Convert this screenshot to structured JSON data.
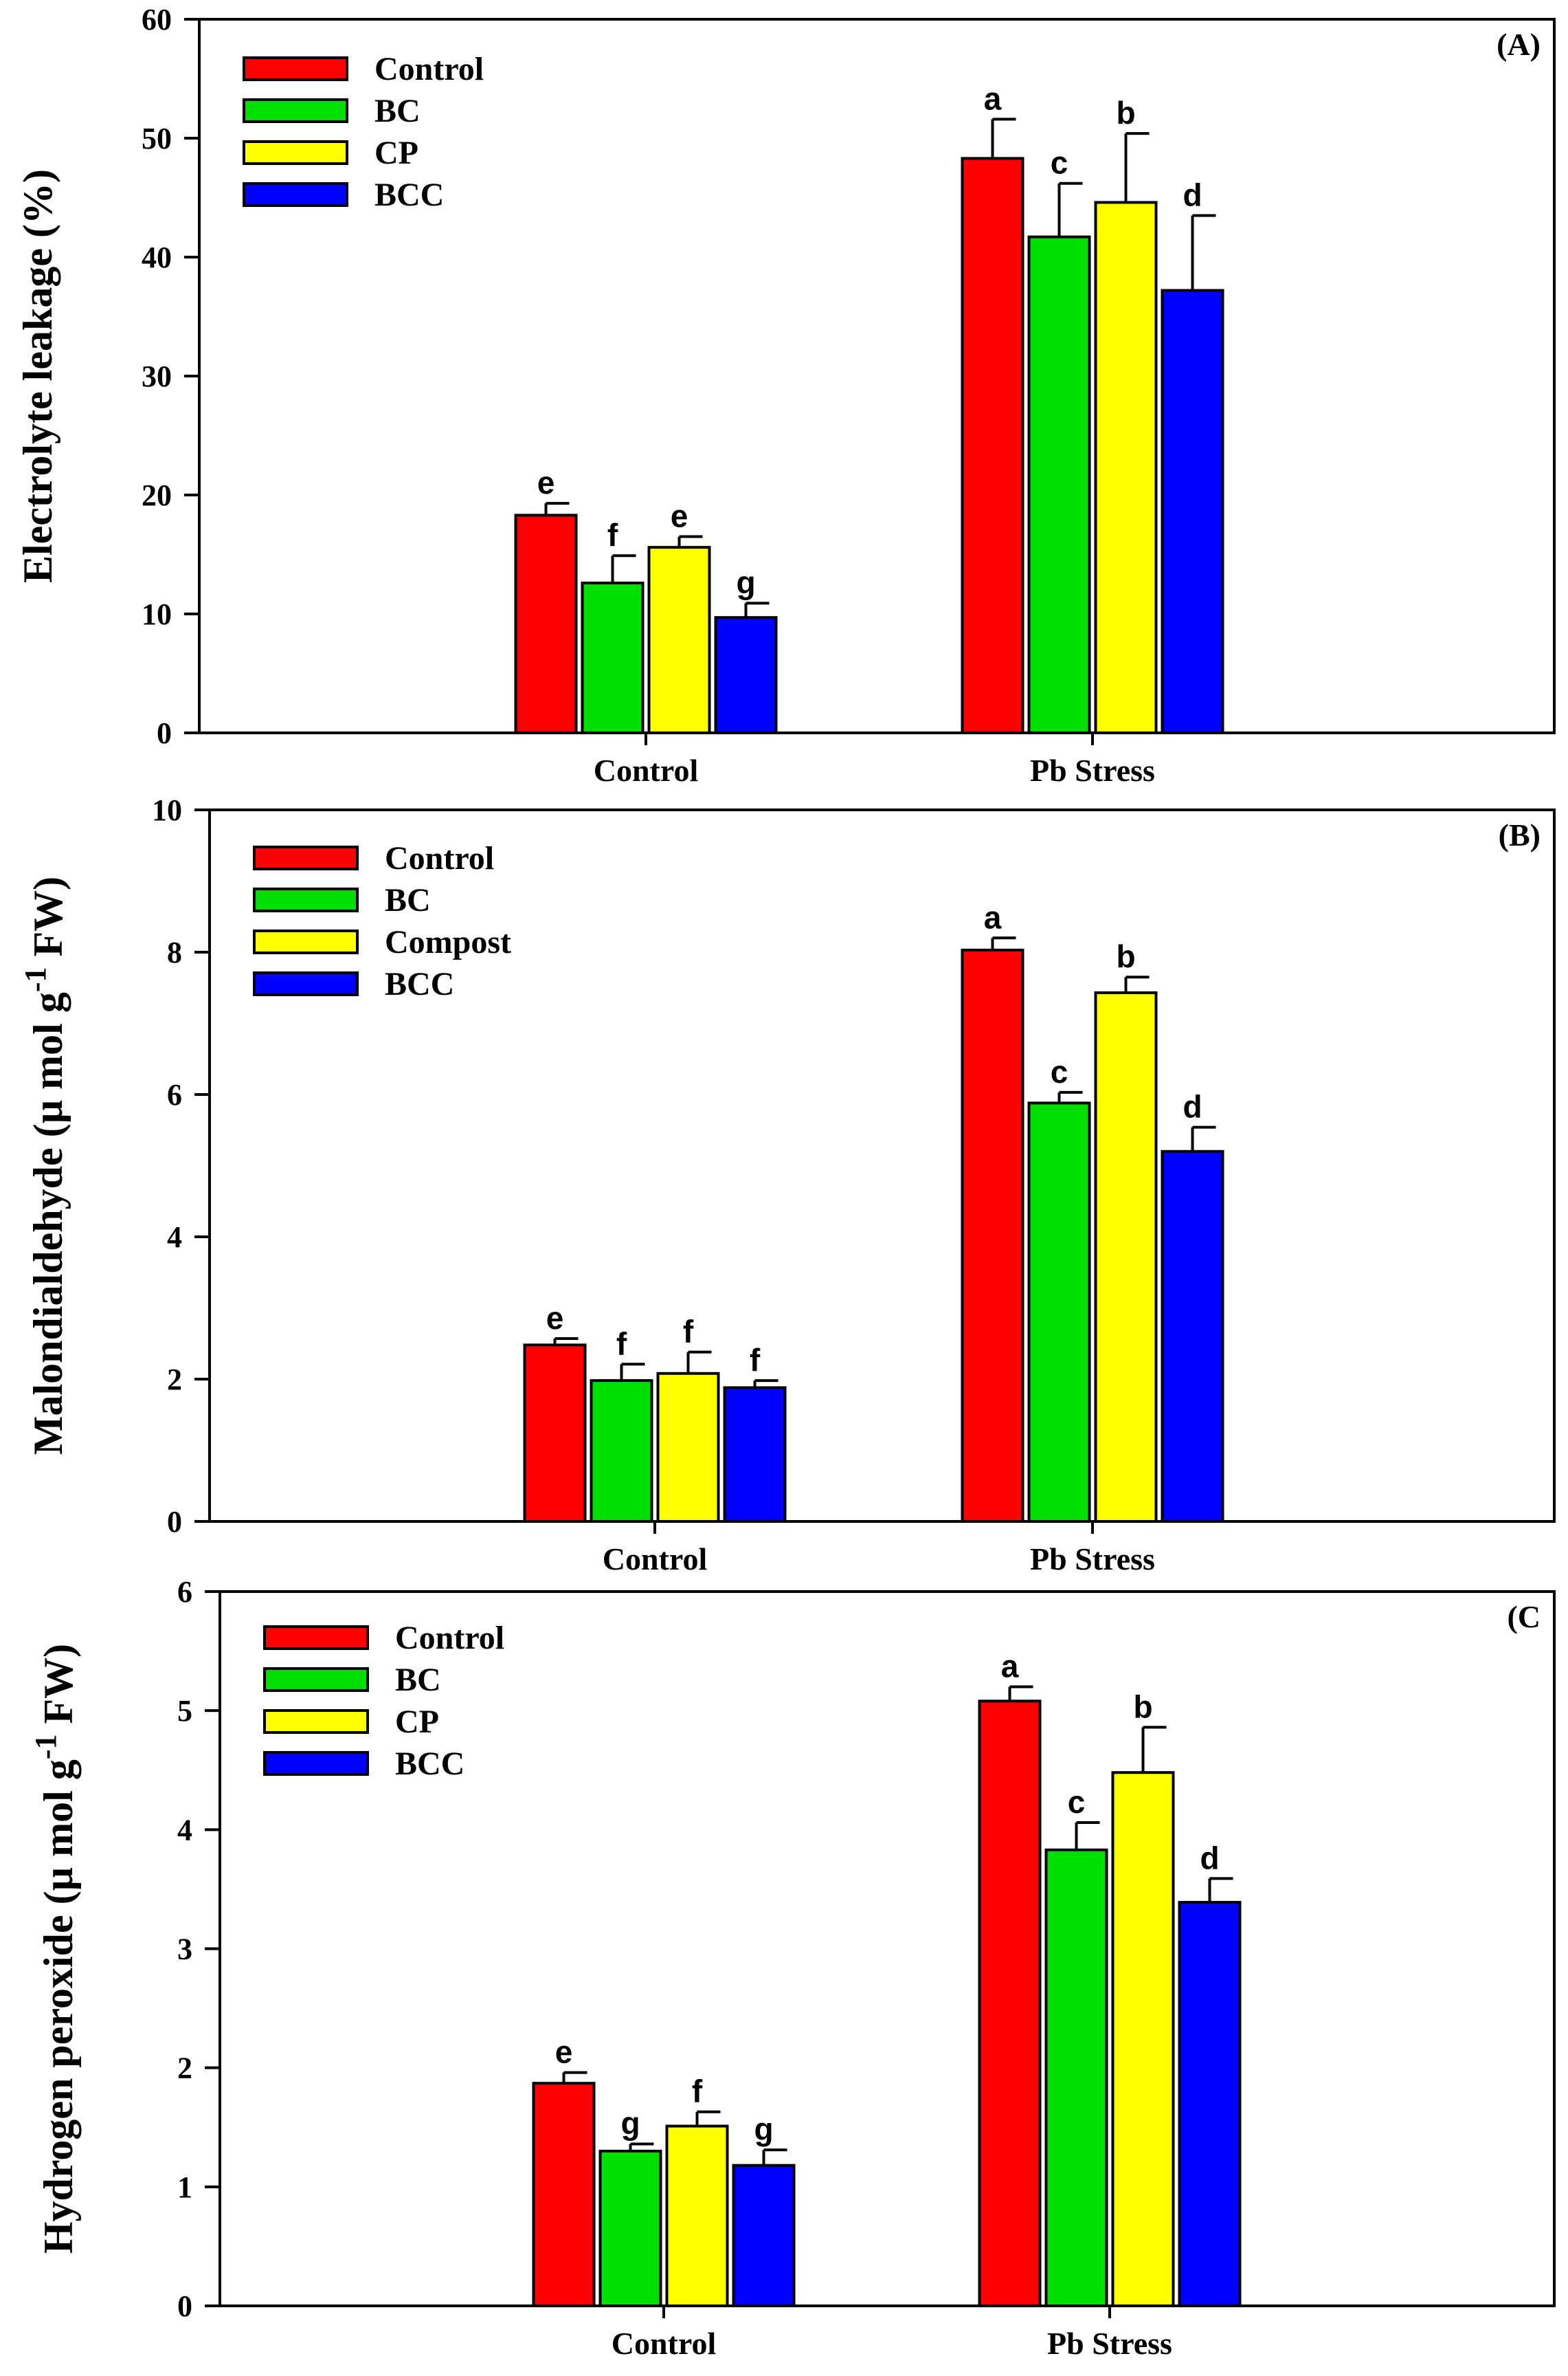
{
  "chart_data": [
    {
      "type": "bar",
      "panel_label": "(A)",
      "ylabel": "Electrolyte leakage (%)",
      "ylabel_sup": "",
      "ylabel_end": "",
      "ylim": [
        0,
        60
      ],
      "yticks": [
        0,
        10,
        20,
        30,
        40,
        50,
        60
      ],
      "categories": [
        "Control",
        "Pb Stress"
      ],
      "legend_position": "top-left",
      "series": [
        {
          "name": "Control",
          "color": "#ff0000",
          "values": [
            18.3,
            48.3
          ],
          "errors": [
            1.0,
            3.3
          ],
          "letters": [
            "e",
            "a"
          ]
        },
        {
          "name": "BC",
          "color": "#00e000",
          "values": [
            12.6,
            41.7
          ],
          "errors": [
            2.3,
            4.5
          ],
          "letters": [
            "f",
            "c"
          ]
        },
        {
          "name": "CP",
          "color": "#ffff00",
          "values": [
            15.6,
            44.6
          ],
          "errors": [
            0.9,
            5.8
          ],
          "letters": [
            "e",
            "b"
          ]
        },
        {
          "name": "BCC",
          "color": "#0000ff",
          "values": [
            9.7,
            37.2
          ],
          "errors": [
            1.2,
            6.3
          ],
          "letters": [
            "g",
            "d"
          ]
        }
      ]
    },
    {
      "type": "bar",
      "panel_label": "(B)",
      "ylabel": "Malondialdehyde (µ mol g",
      "ylabel_sup": "-1",
      "ylabel_end": " FW)",
      "ylim": [
        0,
        10
      ],
      "yticks": [
        0,
        2,
        4,
        6,
        8,
        10
      ],
      "categories": [
        "Control",
        "Pb Stress"
      ],
      "legend_position": "top-left",
      "series": [
        {
          "name": "Control",
          "color": "#ff0000",
          "values": [
            2.48,
            8.03
          ],
          "errors": [
            0.09,
            0.17
          ],
          "letters": [
            "e",
            "a"
          ]
        },
        {
          "name": "BC",
          "color": "#00e000",
          "values": [
            1.98,
            5.88
          ],
          "errors": [
            0.23,
            0.15
          ],
          "letters": [
            "f",
            "c"
          ]
        },
        {
          "name": "Compost",
          "color": "#ffff00",
          "values": [
            2.08,
            7.43
          ],
          "errors": [
            0.3,
            0.22
          ],
          "letters": [
            "f",
            "b"
          ]
        },
        {
          "name": "BCC",
          "color": "#0000ff",
          "values": [
            1.88,
            5.2
          ],
          "errors": [
            0.1,
            0.34
          ],
          "letters": [
            "f",
            "d"
          ]
        }
      ]
    },
    {
      "type": "bar",
      "panel_label": "(C",
      "ylabel": "Hydrogen peroxide (µ mol g",
      "ylabel_sup": "-1",
      "ylabel_end": " FW)",
      "ylim": [
        0,
        6
      ],
      "yticks": [
        0,
        1,
        2,
        3,
        4,
        5,
        6
      ],
      "categories": [
        "Control",
        "Pb Stress"
      ],
      "legend_position": "top-left",
      "series": [
        {
          "name": "Control",
          "color": "#ff0000",
          "values": [
            1.87,
            5.08
          ],
          "errors": [
            0.09,
            0.12
          ],
          "letters": [
            "e",
            "a"
          ]
        },
        {
          "name": "BC",
          "color": "#00e000",
          "values": [
            1.3,
            3.83
          ],
          "errors": [
            0.06,
            0.23
          ],
          "letters": [
            "g",
            "c"
          ]
        },
        {
          "name": "CP",
          "color": "#ffff00",
          "values": [
            1.51,
            4.48
          ],
          "errors": [
            0.12,
            0.38
          ],
          "letters": [
            "f",
            "b"
          ]
        },
        {
          "name": "BCC",
          "color": "#0000ff",
          "values": [
            1.18,
            3.39
          ],
          "errors": [
            0.13,
            0.2
          ],
          "letters": [
            "g",
            "d"
          ]
        }
      ]
    }
  ]
}
